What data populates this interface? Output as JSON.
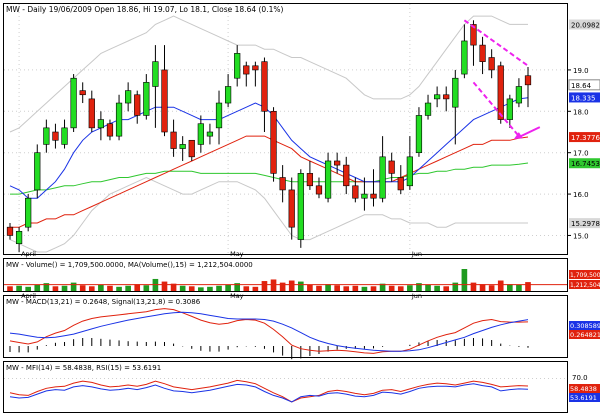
{
  "header": {
    "symbol": "MW",
    "summary": "MW - Daily 19/06/2009 Open 18.86, Hi 19.07, Lo 18.1, Close 18.64 (0.1%)"
  },
  "price_axis": {
    "ticks": [
      "19.0",
      "18.0",
      "17.0",
      "16.0",
      "15.0"
    ],
    "tags": [
      {
        "value": "20.0982",
        "color": "#d8d8d8",
        "text_color": "#000000"
      },
      {
        "value": "18.64",
        "color": "#ffffff",
        "text_color": "#000000"
      },
      {
        "value": "18.335",
        "color": "#1a33e6",
        "text_color": "#ffffff"
      },
      {
        "value": "17.3776",
        "color": "#e0220e",
        "text_color": "#ffffff"
      },
      {
        "value": "16.7453",
        "color": "#2fc72f",
        "text_color": "#000000"
      },
      {
        "value": "15.2978",
        "color": "#d8d8d8",
        "text_color": "#000000"
      }
    ]
  },
  "month_labels": [
    "April",
    "May",
    "Jun"
  ],
  "volume_panel": {
    "title": "MW - Volume() = 1,709,500.0000, MA(Volume(),15) = 1,212,504.0000",
    "tags": [
      {
        "value": "1,709,500",
        "color": "#e0220e"
      },
      {
        "value": "1,212,504",
        "color": "#e0220e"
      }
    ]
  },
  "macd_panel": {
    "title": "MW - MACD(13,21) = 0.2648, Signal(13,21,8) = 0.3086",
    "tags": [
      {
        "value": "0.308589",
        "color": "#1a33e6",
        "text_color": "#ffffff"
      },
      {
        "value": "0.264821",
        "color": "#e0220e",
        "text_color": "#ffffff"
      }
    ]
  },
  "mfi_panel": {
    "title": "MW - MFI(14) = 58.4838, RSI(15) = 53.6191",
    "tick": "70.0",
    "tags": [
      {
        "value": "58.4838",
        "color": "#e0220e",
        "text_color": "#ffffff"
      },
      {
        "value": "53.6191",
        "color": "#1a33e6",
        "text_color": "#ffffff"
      }
    ]
  },
  "colors": {
    "up": "#22dd22",
    "down": "#e0220e",
    "ma_short": "#1a33e6",
    "ma_mid": "#e0220e",
    "ma_long": "#2fc72f",
    "band": "#c8c8c8",
    "annotation": "#ee22ee"
  },
  "chart_data": [
    {
      "type": "candlestick",
      "title": "MW - Daily 19/06/2009 Open 18.86, Hi 19.07, Lo 18.1, Close 18.64 (0.1%)",
      "ylim": [
        14.6,
        20.4
      ],
      "x_month_labels": [
        {
          "label": "April",
          "index": 1
        },
        {
          "label": "May",
          "index": 24
        },
        {
          "label": "Jun",
          "index": 44
        }
      ],
      "candles": [
        [
          15.2,
          15.0,
          15.3,
          14.9
        ],
        [
          14.8,
          15.1,
          15.2,
          14.6
        ],
        [
          15.2,
          15.9,
          16.0,
          15.1
        ],
        [
          16.1,
          17.0,
          17.2,
          15.9
        ],
        [
          17.2,
          17.6,
          17.8,
          17.0
        ],
        [
          17.5,
          17.3,
          17.7,
          17.1
        ],
        [
          17.2,
          17.6,
          17.8,
          17.1
        ],
        [
          17.6,
          18.8,
          18.9,
          17.5
        ],
        [
          18.5,
          18.4,
          18.7,
          18.2
        ],
        [
          18.3,
          17.6,
          18.5,
          17.5
        ],
        [
          17.6,
          17.8,
          18.0,
          17.3
        ],
        [
          17.7,
          17.4,
          17.8,
          17.3
        ],
        [
          17.4,
          18.2,
          18.4,
          17.3
        ],
        [
          18.2,
          18.5,
          18.7,
          18.0
        ],
        [
          18.4,
          17.9,
          18.5,
          17.7
        ],
        [
          17.9,
          18.7,
          18.9,
          17.8
        ],
        [
          18.6,
          19.2,
          19.6,
          17.6
        ],
        [
          19.0,
          17.5,
          19.6,
          17.4
        ],
        [
          17.5,
          17.1,
          17.8,
          16.9
        ],
        [
          17.1,
          17.2,
          17.4,
          16.8
        ],
        [
          17.3,
          16.9,
          17.3,
          16.8
        ],
        [
          17.2,
          17.7,
          17.9,
          17.0
        ],
        [
          17.4,
          17.5,
          17.7,
          17.2
        ],
        [
          17.6,
          18.2,
          18.5,
          17.2
        ],
        [
          18.2,
          18.6,
          18.9,
          18.1
        ],
        [
          18.8,
          19.4,
          19.6,
          18.6
        ],
        [
          19.1,
          18.9,
          19.2,
          18.6
        ],
        [
          19.1,
          19.0,
          19.2,
          18.6
        ],
        [
          19.2,
          18.0,
          19.3,
          17.5
        ],
        [
          18.0,
          16.5,
          18.1,
          16.3
        ],
        [
          16.4,
          16.1,
          16.7,
          15.8
        ],
        [
          16.1,
          15.2,
          16.4,
          14.9
        ],
        [
          14.9,
          16.5,
          16.6,
          14.7
        ],
        [
          16.5,
          16.2,
          16.8,
          16.1
        ],
        [
          16.2,
          16.0,
          16.4,
          15.9
        ],
        [
          15.9,
          16.8,
          17.0,
          15.8
        ],
        [
          16.8,
          16.7,
          17.0,
          16.5
        ],
        [
          16.7,
          16.2,
          16.9,
          16.0
        ],
        [
          16.2,
          15.9,
          16.4,
          15.8
        ],
        [
          15.9,
          16.0,
          16.4,
          15.6
        ],
        [
          16.0,
          15.9,
          16.6,
          15.7
        ],
        [
          15.9,
          16.9,
          17.4,
          15.8
        ],
        [
          16.8,
          16.5,
          17.0,
          16.3
        ],
        [
          16.4,
          16.1,
          16.7,
          16.0
        ],
        [
          16.2,
          16.9,
          17.4,
          16.1
        ],
        [
          17.0,
          17.9,
          18.1,
          16.9
        ],
        [
          17.9,
          18.2,
          18.4,
          17.8
        ],
        [
          18.3,
          18.4,
          18.6,
          18.1
        ],
        [
          18.4,
          18.3,
          18.6,
          18.0
        ],
        [
          18.1,
          18.8,
          19.0,
          17.2
        ],
        [
          18.9,
          19.7,
          20.1,
          18.8
        ],
        [
          20.1,
          19.6,
          20.2,
          19.1
        ],
        [
          19.6,
          19.2,
          19.8,
          18.9
        ],
        [
          19.3,
          19.0,
          19.5,
          18.8
        ],
        [
          19.1,
          17.8,
          19.2,
          17.7
        ],
        [
          17.8,
          18.3,
          18.4,
          17.6
        ],
        [
          18.2,
          18.6,
          18.8,
          18.1
        ],
        [
          18.86,
          18.64,
          19.07,
          18.1
        ]
      ],
      "overlays": [
        {
          "name": "MA short",
          "values": [
            16.2,
            16.1,
            15.9,
            15.9,
            16.1,
            16.3,
            16.6,
            17.0,
            17.3,
            17.5,
            17.6,
            17.7,
            17.8,
            17.8,
            17.9,
            18.0,
            18.1,
            18.1,
            18.1,
            18.0,
            17.9,
            17.8,
            17.8,
            17.8,
            17.9,
            18.0,
            18.1,
            18.2,
            18.1,
            17.9,
            17.6,
            17.3,
            17.1,
            16.9,
            16.8,
            16.7,
            16.6,
            16.5,
            16.4,
            16.3,
            16.3,
            16.3,
            16.3,
            16.3,
            16.4,
            16.6,
            16.8,
            17.0,
            17.2,
            17.4,
            17.6,
            17.8,
            17.9,
            18.0,
            18.1,
            18.2,
            18.3,
            18.33
          ]
        },
        {
          "name": "MA mid",
          "values": [
            15.2,
            15.2,
            15.3,
            15.3,
            15.4,
            15.4,
            15.5,
            15.5,
            15.6,
            15.7,
            15.8,
            15.9,
            16.0,
            16.1,
            16.2,
            16.3,
            16.4,
            16.5,
            16.6,
            16.7,
            16.8,
            16.9,
            17.0,
            17.1,
            17.2,
            17.3,
            17.4,
            17.4,
            17.4,
            17.3,
            17.2,
            17.1,
            16.9,
            16.8,
            16.7,
            16.6,
            16.5,
            16.4,
            16.3,
            16.3,
            16.3,
            16.3,
            16.3,
            16.4,
            16.5,
            16.6,
            16.7,
            16.8,
            16.9,
            17.0,
            17.1,
            17.2,
            17.2,
            17.3,
            17.3,
            17.3,
            17.35,
            17.38
          ]
        },
        {
          "name": "MA long",
          "values": [
            16.0,
            16.0,
            16.05,
            16.1,
            16.1,
            16.15,
            16.2,
            16.2,
            16.25,
            16.3,
            16.3,
            16.35,
            16.4,
            16.4,
            16.45,
            16.5,
            16.5,
            16.55,
            16.55,
            16.55,
            16.55,
            16.5,
            16.5,
            16.5,
            16.5,
            16.5,
            16.5,
            16.5,
            16.45,
            16.4,
            16.35,
            16.3,
            16.3,
            16.3,
            16.3,
            16.3,
            16.3,
            16.3,
            16.3,
            16.3,
            16.3,
            16.35,
            16.4,
            16.4,
            16.45,
            16.5,
            16.5,
            16.55,
            16.55,
            16.6,
            16.6,
            16.65,
            16.65,
            16.7,
            16.7,
            16.7,
            16.72,
            16.75
          ]
        },
        {
          "name": "Upper band",
          "values": [
            17.5,
            17.6,
            17.8,
            18.0,
            18.2,
            18.4,
            18.6,
            18.8,
            19.0,
            19.2,
            19.4,
            19.5,
            19.6,
            19.7,
            19.8,
            19.9,
            20.1,
            20.2,
            20.3,
            20.2,
            20.1,
            20.0,
            19.9,
            19.8,
            19.7,
            19.6,
            19.6,
            19.6,
            19.5,
            19.5,
            19.4,
            19.3,
            19.3,
            19.2,
            19.1,
            19.0,
            18.9,
            18.8,
            18.6,
            18.4,
            18.3,
            18.3,
            18.3,
            18.3,
            18.4,
            18.6,
            18.9,
            19.2,
            19.5,
            19.8,
            20.1,
            20.3,
            20.3,
            20.3,
            20.2,
            20.1,
            20.1,
            20.1
          ]
        },
        {
          "name": "Lower band",
          "values": [
            14.9,
            14.8,
            14.7,
            14.6,
            14.6,
            14.7,
            14.8,
            15.0,
            15.3,
            15.6,
            15.8,
            16.0,
            16.1,
            16.2,
            16.3,
            16.4,
            16.3,
            16.2,
            16.1,
            16.0,
            16.0,
            16.1,
            16.2,
            16.3,
            16.3,
            16.3,
            16.2,
            16.1,
            15.9,
            15.6,
            15.3,
            15.0,
            14.9,
            14.9,
            15.0,
            15.1,
            15.2,
            15.3,
            15.4,
            15.5,
            15.5,
            15.5,
            15.4,
            15.4,
            15.3,
            15.3,
            15.3,
            15.2,
            15.2,
            15.3,
            15.3,
            15.3,
            15.3,
            15.3,
            15.3,
            15.3,
            15.3,
            15.3
          ]
        }
      ],
      "annotations": [
        {
          "type": "dashed-line",
          "from": [
            50,
            20.2
          ],
          "to": [
            57,
            19.1
          ]
        },
        {
          "type": "dashed-line",
          "from": [
            51,
            18.7
          ],
          "to": [
            56,
            17.4
          ]
        },
        {
          "type": "arrow",
          "points_to": [
            55,
            17.4
          ]
        }
      ]
    },
    {
      "type": "bar",
      "title": "MW - Volume() = 1,709,500.0000, MA(Volume(),15) = 1,212,504.0000",
      "values": [
        0.9,
        1.0,
        0.8,
        1.2,
        1.5,
        0.9,
        1.0,
        1.6,
        1.1,
        0.9,
        1.2,
        1.0,
        0.8,
        1.0,
        1.3,
        1.1,
        2.3,
        1.8,
        1.4,
        1.0,
        0.9,
        0.7,
        0.8,
        1.0,
        1.2,
        1.5,
        0.9,
        0.8,
        1.9,
        2.2,
        1.6,
        2.0,
        1.8,
        1.2,
        1.0,
        1.3,
        1.1,
        0.9,
        1.0,
        0.8,
        0.9,
        1.4,
        1.0,
        0.9,
        1.1,
        1.5,
        1.2,
        1.0,
        0.9,
        1.6,
        4.2,
        1.6,
        1.3,
        1.1,
        2.0,
        1.3,
        1.2,
        1.7
      ],
      "ma": 1.2125
    },
    {
      "type": "line",
      "title": "MW - MACD(13,21) = 0.2648, Signal(13,21,8) = 0.3086",
      "series": [
        {
          "name": "MACD(13,21)",
          "values": [
            -0.1,
            -0.13,
            -0.16,
            -0.12,
            -0.02,
            0.05,
            0.1,
            0.2,
            0.28,
            0.33,
            0.36,
            0.38,
            0.4,
            0.42,
            0.44,
            0.46,
            0.5,
            0.52,
            0.5,
            0.44,
            0.37,
            0.3,
            0.25,
            0.22,
            0.24,
            0.29,
            0.31,
            0.3,
            0.24,
            0.12,
            -0.02,
            -0.18,
            -0.25,
            -0.28,
            -0.3,
            -0.29,
            -0.28,
            -0.29,
            -0.31,
            -0.33,
            -0.34,
            -0.31,
            -0.3,
            -0.3,
            -0.26,
            -0.18,
            -0.1,
            -0.03,
            0.02,
            0.06,
            0.15,
            0.24,
            0.29,
            0.31,
            0.27,
            0.26,
            0.26,
            0.265
          ]
        },
        {
          "name": "Signal(13,21,8)",
          "values": [
            0.05,
            0.03,
            0.0,
            -0.03,
            -0.04,
            -0.03,
            0.0,
            0.03,
            0.08,
            0.13,
            0.18,
            0.22,
            0.26,
            0.3,
            0.33,
            0.36,
            0.39,
            0.42,
            0.44,
            0.45,
            0.44,
            0.42,
            0.39,
            0.36,
            0.33,
            0.32,
            0.32,
            0.32,
            0.31,
            0.28,
            0.22,
            0.15,
            0.06,
            -0.03,
            -0.1,
            -0.15,
            -0.19,
            -0.22,
            -0.24,
            -0.26,
            -0.28,
            -0.29,
            -0.3,
            -0.3,
            -0.29,
            -0.27,
            -0.23,
            -0.18,
            -0.13,
            -0.08,
            -0.03,
            0.04,
            0.1,
            0.16,
            0.21,
            0.25,
            0.28,
            0.309
          ]
        }
      ]
    },
    {
      "type": "line",
      "title": "MW - MFI(14) = 58.4838, RSI(15) = 53.6191",
      "ylim": [
        20,
        80
      ],
      "series": [
        {
          "name": "MFI(14)",
          "values": [
            48,
            45,
            44,
            50,
            55,
            57,
            58,
            63,
            66,
            64,
            60,
            57,
            58,
            60,
            58,
            61,
            66,
            62,
            57,
            55,
            53,
            55,
            57,
            60,
            63,
            67,
            65,
            62,
            55,
            48,
            42,
            34,
            40,
            42,
            44,
            50,
            52,
            50,
            47,
            45,
            47,
            52,
            53,
            50,
            54,
            58,
            61,
            63,
            62,
            60,
            63,
            66,
            64,
            61,
            57,
            58,
            59,
            58.5
          ]
        },
        {
          "name": "RSI(15)",
          "values": [
            42,
            40,
            41,
            46,
            51,
            53,
            52,
            57,
            59,
            57,
            54,
            52,
            53,
            55,
            53,
            56,
            60,
            55,
            51,
            50,
            48,
            50,
            52,
            55,
            58,
            61,
            60,
            57,
            50,
            44,
            40,
            34,
            42,
            44,
            43,
            47,
            48,
            46,
            43,
            42,
            44,
            49,
            48,
            46,
            50,
            55,
            57,
            58,
            58,
            57,
            60,
            62,
            59,
            57,
            51,
            53,
            54,
            53.6
          ]
        }
      ]
    }
  ]
}
